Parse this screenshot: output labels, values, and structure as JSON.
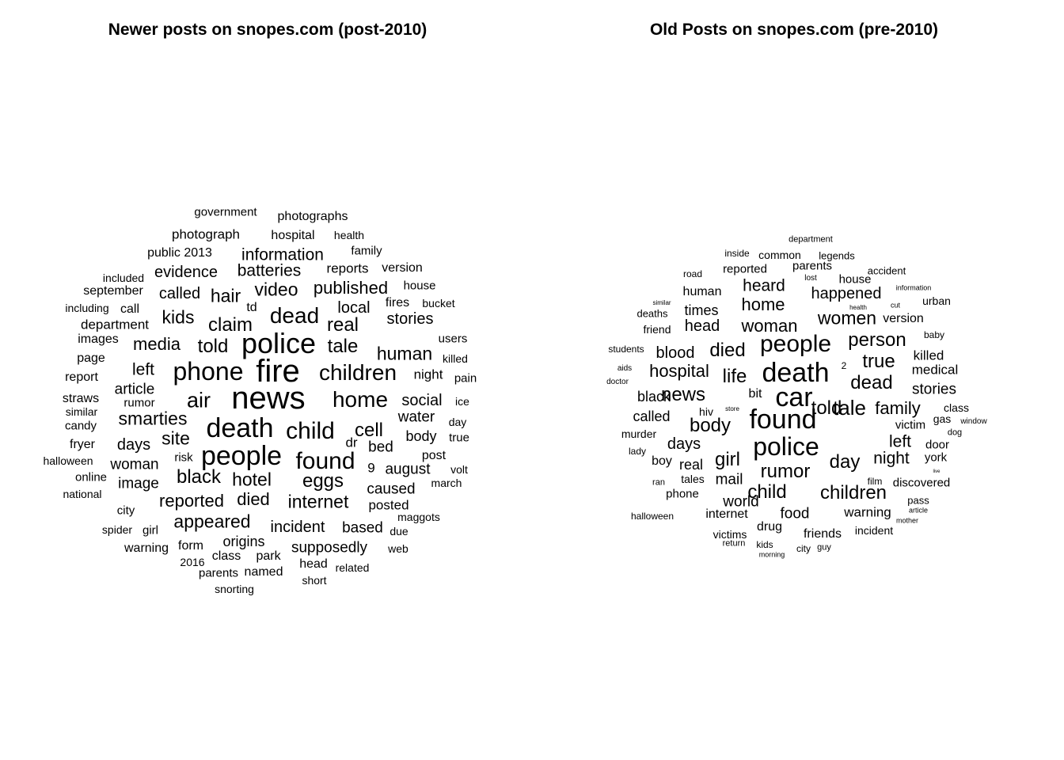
{
  "panels": [
    {
      "title": "Newer posts on snopes.com (post-2010)",
      "words": [
        "government",
        "photographs",
        "photograph",
        "hospital",
        "health",
        "public 2013",
        "information",
        "family",
        "evidence",
        "batteries",
        "reports",
        "version",
        "included",
        "video",
        "published",
        "called",
        "hair",
        "house",
        "september",
        "td",
        "fires",
        "bucket",
        "including",
        "call",
        "dead",
        "local",
        "department",
        "kids",
        "claim",
        "real",
        "stories",
        "images",
        "media",
        "police",
        "tale",
        "users",
        "page",
        "told",
        "human",
        "killed",
        "report",
        "left",
        "phone",
        "fire",
        "children",
        "night",
        "pain",
        "article",
        "straws",
        "rumor",
        "news",
        "home",
        "social",
        "ice",
        "similar",
        "air",
        "smarties",
        "candy",
        "water",
        "day",
        "death",
        "child",
        "cell",
        "body",
        "true",
        "fryer",
        "days",
        "site",
        "dr",
        "bed",
        "halloween",
        "post",
        "woman",
        "people",
        "found",
        "risk",
        "9",
        "august",
        "volt",
        "online",
        "black",
        "image",
        "eggs",
        "hotel",
        "caused",
        "march",
        "national",
        "reported",
        "died",
        "internet",
        "posted",
        "city",
        "appeared",
        "maggots",
        "spider",
        "girl",
        "incident",
        "based",
        "due",
        "origins",
        "warning",
        "form",
        "supposedly",
        "web",
        "class",
        "park",
        "2016",
        "head",
        "related",
        "parents",
        "named",
        "short",
        "snorting"
      ]
    },
    {
      "title": "Old Posts on snopes.com (pre-2010)",
      "words": [
        "department",
        "inside",
        "common",
        "legends",
        "reported",
        "parents",
        "accident",
        "road",
        "lost",
        "house",
        "heard",
        "happened",
        "information",
        "human",
        "urban",
        "similar",
        "home",
        "cut",
        "deaths",
        "health",
        "times",
        "women",
        "version",
        "friend",
        "head",
        "woman",
        "baby",
        "person",
        "students",
        "blood",
        "people",
        "killed",
        "died",
        "true",
        "aids",
        "hospital",
        "medical",
        "death",
        "2",
        "life",
        "doctor",
        "dead",
        "stories",
        "black",
        "bit",
        "car",
        "news",
        "family",
        "class",
        "store",
        "tale",
        "told",
        "called",
        "hiv",
        "gas",
        "window",
        "found",
        "body",
        "victim",
        "murder",
        "dog",
        "days",
        "left",
        "door",
        "lady",
        "night",
        "boy",
        "police",
        "york",
        "girl",
        "real",
        "live",
        "ran",
        "day",
        "film",
        "rumor",
        "discovered",
        "mail",
        "tales",
        "phone",
        "pass",
        "world",
        "child",
        "children",
        "article",
        "halloween",
        "internet",
        "food",
        "warning",
        "mother",
        "drug",
        "incident",
        "victims",
        "friends",
        "return",
        "kids",
        "city",
        "guy",
        "morning"
      ]
    }
  ]
}
